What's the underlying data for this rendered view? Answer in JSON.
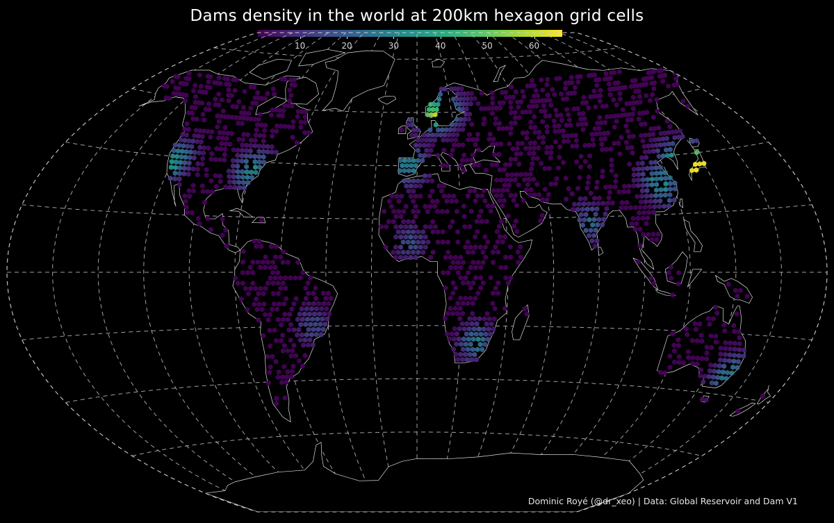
{
  "title": "Dams density in the world at 200km hexagon grid cells",
  "credit": "Dominic Royé (@dr_xeo) | Data: Global Reservoir and Dam V1",
  "legend": {
    "ticks": [
      "10",
      "20",
      "30",
      "40",
      "50",
      "60"
    ],
    "tick_values": [
      10,
      20,
      30,
      40,
      50,
      60
    ],
    "range": [
      1,
      66
    ],
    "colormap": [
      "#440154",
      "#472d7b",
      "#3b528b",
      "#2c728e",
      "#21918c",
      "#28ae80",
      "#5ec962",
      "#addc30",
      "#fde725"
    ]
  },
  "colors": {
    "background": "#000000",
    "graticule": "#bdbdbd",
    "coastline": "#e0e0e0",
    "text": "#ffffff"
  },
  "chart_data": {
    "type": "heatmap",
    "projection": "Winkel Tripel",
    "graticule": "dashed, every 20 degrees",
    "variable": "dams per 200km hexagon",
    "color_scale": "viridis",
    "scale_range": [
      1,
      66
    ],
    "hotspots": [
      {
        "lon": 139,
        "lat": 36,
        "value": 65
      },
      {
        "lon": 10,
        "lat": 60,
        "value": 55
      },
      {
        "lon": -120,
        "lat": 38,
        "value": 35
      },
      {
        "lon": -80,
        "lat": 37,
        "value": 30
      },
      {
        "lon": -4,
        "lat": 40,
        "value": 30
      },
      {
        "lon": 114,
        "lat": 30,
        "value": 30
      },
      {
        "lon": 128,
        "lat": 36,
        "value": 40
      },
      {
        "lon": 27,
        "lat": -26,
        "value": 25
      },
      {
        "lon": 150,
        "lat": -33,
        "value": 25
      },
      {
        "lon": 78,
        "lat": 18,
        "value": 20
      },
      {
        "lon": -47,
        "lat": -20,
        "value": 15
      },
      {
        "lon": -3,
        "lat": 11,
        "value": 15
      }
    ]
  }
}
